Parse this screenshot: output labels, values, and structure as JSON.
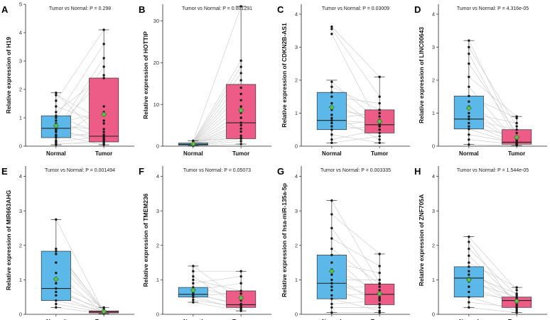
{
  "figure": {
    "description_free": true
  },
  "colors": {
    "normal_box": "#5bb8e8",
    "tumor_box": "#ec5c86",
    "mean": "#5fbf4f",
    "pair_line": "#c8c8c8",
    "point": "#1a1a1a"
  },
  "chart_data": [
    {
      "panel": "A",
      "type": "boxplot-paired",
      "title": "Tumor vs Normal: P = 0.298",
      "ylabel": "Relative expression of H19",
      "categories": [
        "Normal",
        "Tumor"
      ],
      "ylim": [
        0,
        5
      ],
      "yticks": [
        0,
        1,
        2,
        3,
        4,
        5
      ],
      "normal": {
        "min": 0.05,
        "q1": 0.3,
        "median": 0.63,
        "q3": 1.07,
        "max": 1.88,
        "mean": 0.72
      },
      "tumor": {
        "min": 0.05,
        "q1": 0.15,
        "median": 0.35,
        "q3": 2.4,
        "max": 4.1,
        "mean": 1.12
      },
      "pairs": [
        [
          0.05,
          0.2
        ],
        [
          0.1,
          0.1
        ],
        [
          0.15,
          0.35
        ],
        [
          0.2,
          1.4
        ],
        [
          0.3,
          0.5
        ],
        [
          0.35,
          2.8
        ],
        [
          0.4,
          0.05
        ],
        [
          0.5,
          0.3
        ],
        [
          0.55,
          3.1
        ],
        [
          0.6,
          0.15
        ],
        [
          0.63,
          2.4
        ],
        [
          0.7,
          0.6
        ],
        [
          0.8,
          1.2
        ],
        [
          0.9,
          0.25
        ],
        [
          1.0,
          3.6
        ],
        [
          1.07,
          0.4
        ],
        [
          1.2,
          2.5
        ],
        [
          1.4,
          0.8
        ],
        [
          1.6,
          4.1
        ],
        [
          1.8,
          0.9
        ],
        [
          1.88,
          0.2
        ]
      ]
    },
    {
      "panel": "B",
      "type": "boxplot-paired",
      "title": "Tumor vs Normal: P = 0.001291",
      "ylabel": "Relative expression of HOTTIP",
      "categories": [
        "Normal",
        "Tumor"
      ],
      "ylim": [
        0,
        34
      ],
      "yticks": [
        0,
        10,
        20,
        30
      ],
      "normal": {
        "min": 0.1,
        "q1": 0.25,
        "median": 0.45,
        "q3": 0.75,
        "max": 1.3,
        "mean": 0.55
      },
      "tumor": {
        "min": 0.5,
        "q1": 1.8,
        "median": 5.6,
        "q3": 14.8,
        "max": 33.5,
        "mean": 8.6
      },
      "pairs": [
        [
          0.1,
          0.5
        ],
        [
          0.15,
          1.2
        ],
        [
          0.2,
          1.8
        ],
        [
          0.25,
          2.5
        ],
        [
          0.3,
          3.5
        ],
        [
          0.35,
          4.2
        ],
        [
          0.4,
          5.0
        ],
        [
          0.45,
          5.6
        ],
        [
          0.5,
          6.8
        ],
        [
          0.55,
          8.0
        ],
        [
          0.6,
          9.5
        ],
        [
          0.65,
          11.0
        ],
        [
          0.7,
          12.5
        ],
        [
          0.75,
          14.0
        ],
        [
          0.8,
          15.8
        ],
        [
          0.9,
          17.5
        ],
        [
          1.0,
          19.0
        ],
        [
          1.1,
          20.5
        ],
        [
          1.2,
          33.5
        ],
        [
          1.3,
          2.0
        ]
      ]
    },
    {
      "panel": "C",
      "type": "boxplot-paired",
      "title": "Tumor vs Normal: P = 0.03009",
      "ylabel": "Relative expression of CDKN2B-AS1",
      "categories": [
        "Normal",
        "Tumor"
      ],
      "ylim": [
        0,
        4.3
      ],
      "yticks": [
        0,
        1,
        2,
        3,
        4
      ],
      "normal": {
        "min": 0.1,
        "q1": 0.5,
        "median": 0.78,
        "q3": 1.63,
        "max": 2.0,
        "mean": 1.18
      },
      "tumor": {
        "min": 0.1,
        "q1": 0.4,
        "median": 0.65,
        "q3": 1.1,
        "max": 2.1,
        "mean": 0.75
      },
      "pairs": [
        [
          0.1,
          0.3
        ],
        [
          0.2,
          0.5
        ],
        [
          0.35,
          0.1
        ],
        [
          0.5,
          0.6
        ],
        [
          0.6,
          0.8
        ],
        [
          0.7,
          0.4
        ],
        [
          0.78,
          0.7
        ],
        [
          0.85,
          1.0
        ],
        [
          0.95,
          0.2
        ],
        [
          1.1,
          0.9
        ],
        [
          1.3,
          0.65
        ],
        [
          1.5,
          1.3
        ],
        [
          1.63,
          0.5
        ],
        [
          1.8,
          1.1
        ],
        [
          1.95,
          0.75
        ],
        [
          3.4,
          0.6
        ],
        [
          3.55,
          1.5
        ],
        [
          3.62,
          2.1
        ]
      ]
    },
    {
      "panel": "D",
      "type": "boxplot-paired",
      "title": "Tumor vs Normal: P = 4.316e-05",
      "ylabel": "Relative expression of LINC00643",
      "categories": [
        "Normal",
        "Tumor"
      ],
      "ylim": [
        0,
        4.3
      ],
      "yticks": [
        0,
        1,
        2,
        3,
        4
      ],
      "normal": {
        "min": 0.05,
        "q1": 0.52,
        "median": 0.82,
        "q3": 1.52,
        "max": 3.2,
        "mean": 1.15
      },
      "tumor": {
        "min": 0.02,
        "q1": 0.06,
        "median": 0.12,
        "q3": 0.5,
        "max": 0.9,
        "mean": 0.27
      },
      "pairs": [
        [
          0.05,
          0.02
        ],
        [
          0.2,
          0.05
        ],
        [
          0.35,
          0.1
        ],
        [
          0.52,
          0.06
        ],
        [
          0.6,
          0.3
        ],
        [
          0.7,
          0.08
        ],
        [
          0.82,
          0.5
        ],
        [
          0.9,
          0.12
        ],
        [
          1.0,
          0.7
        ],
        [
          1.2,
          0.04
        ],
        [
          1.35,
          0.2
        ],
        [
          1.52,
          0.85
        ],
        [
          1.8,
          0.1
        ],
        [
          2.1,
          0.9
        ],
        [
          2.5,
          0.4
        ],
        [
          2.8,
          0.15
        ],
        [
          3.0,
          0.6
        ],
        [
          3.2,
          0.25
        ]
      ]
    },
    {
      "panel": "E",
      "type": "boxplot-paired",
      "title": "Tumor vs Normal: P = 0.001494",
      "ylabel": "Relative expression of MIR663AHG",
      "categories": [
        "Normal",
        "Tumor"
      ],
      "ylim": [
        0,
        4.3
      ],
      "yticks": [
        0,
        1,
        2,
        3,
        4
      ],
      "normal": {
        "min": 0.2,
        "q1": 0.4,
        "median": 0.75,
        "q3": 1.83,
        "max": 2.75,
        "mean": 1.02
      },
      "tumor": {
        "min": 0.02,
        "q1": 0.04,
        "median": 0.07,
        "q3": 0.1,
        "max": 0.2,
        "mean": 0.08
      },
      "pairs": [
        [
          0.2,
          0.02
        ],
        [
          0.3,
          0.05
        ],
        [
          0.4,
          0.1
        ],
        [
          0.55,
          0.04
        ],
        [
          0.65,
          0.15
        ],
        [
          0.75,
          0.07
        ],
        [
          0.9,
          0.2
        ],
        [
          1.2,
          0.03
        ],
        [
          1.5,
          0.1
        ],
        [
          1.75,
          0.06
        ],
        [
          1.83,
          0.12
        ],
        [
          1.9,
          0.08
        ],
        [
          2.75,
          0.05
        ]
      ]
    },
    {
      "panel": "F",
      "type": "boxplot-paired",
      "title": "Tumor vs Normal: P = 0.05073",
      "ylabel": "Relative expression of TMEM236",
      "categories": [
        "Normal",
        "Tumor"
      ],
      "ylim": [
        0,
        4.3
      ],
      "yticks": [
        0,
        1,
        2,
        3,
        4
      ],
      "normal": {
        "min": 0.35,
        "q1": 0.5,
        "median": 0.58,
        "q3": 0.78,
        "max": 1.4,
        "mean": 0.7
      },
      "tumor": {
        "min": 0.1,
        "q1": 0.2,
        "median": 0.28,
        "q3": 0.68,
        "max": 1.25,
        "mean": 0.48
      },
      "pairs": [
        [
          0.35,
          0.1
        ],
        [
          0.42,
          0.2
        ],
        [
          0.5,
          0.15
        ],
        [
          0.55,
          0.6
        ],
        [
          0.58,
          0.3
        ],
        [
          0.62,
          0.25
        ],
        [
          0.7,
          0.9
        ],
        [
          0.78,
          0.5
        ],
        [
          0.9,
          1.1
        ],
        [
          1.0,
          0.68
        ],
        [
          1.1,
          0.2
        ],
        [
          1.25,
          1.25
        ],
        [
          1.4,
          0.4
        ]
      ]
    },
    {
      "panel": "G",
      "type": "boxplot-paired",
      "title": "Tumor vs Normal: P = 0.003335",
      "ylabel": "Relative expression of hsa-miR-135a-5p",
      "categories": [
        "Normal",
        "Tumor"
      ],
      "ylim": [
        0,
        4.3
      ],
      "yticks": [
        0,
        1,
        2,
        3,
        4
      ],
      "normal": {
        "min": 0.05,
        "q1": 0.45,
        "median": 0.9,
        "q3": 1.72,
        "max": 3.3,
        "mean": 1.25
      },
      "tumor": {
        "min": 0.05,
        "q1": 0.28,
        "median": 0.58,
        "q3": 0.88,
        "max": 1.75,
        "mean": 0.6
      },
      "pairs": [
        [
          0.05,
          0.05
        ],
        [
          0.2,
          0.2
        ],
        [
          0.3,
          0.4
        ],
        [
          0.45,
          0.1
        ],
        [
          0.55,
          0.6
        ],
        [
          0.7,
          0.3
        ],
        [
          0.8,
          0.8
        ],
        [
          0.9,
          0.5
        ],
        [
          1.0,
          1.0
        ],
        [
          1.15,
          0.28
        ],
        [
          1.3,
          0.7
        ],
        [
          1.5,
          1.2
        ],
        [
          1.72,
          0.45
        ],
        [
          1.9,
          0.88
        ],
        [
          2.2,
          1.4
        ],
        [
          2.5,
          0.6
        ],
        [
          2.9,
          1.75
        ],
        [
          3.3,
          0.9
        ]
      ]
    },
    {
      "panel": "H",
      "type": "boxplot-paired",
      "title": "Tumor vs Normal: P = 1.544e-05",
      "ylabel": "Relative expression of ZNF705A",
      "categories": [
        "Normal",
        "Tumor"
      ],
      "ylim": [
        0,
        4.3
      ],
      "yticks": [
        0,
        1,
        2,
        3,
        4
      ],
      "normal": {
        "min": 0.2,
        "q1": 0.5,
        "median": 1.05,
        "q3": 1.38,
        "max": 2.25,
        "mean": 1.0
      },
      "tumor": {
        "min": 0.05,
        "q1": 0.2,
        "median": 0.4,
        "q3": 0.5,
        "max": 0.78,
        "mean": 0.38
      },
      "pairs": [
        [
          0.2,
          0.05
        ],
        [
          0.35,
          0.2
        ],
        [
          0.5,
          0.1
        ],
        [
          0.65,
          0.4
        ],
        [
          0.8,
          0.3
        ],
        [
          0.95,
          0.5
        ],
        [
          1.05,
          0.25
        ],
        [
          1.15,
          0.6
        ],
        [
          1.25,
          0.45
        ],
        [
          1.38,
          0.15
        ],
        [
          1.5,
          0.78
        ],
        [
          1.7,
          0.35
        ],
        [
          1.9,
          0.55
        ],
        [
          2.1,
          0.2
        ],
        [
          2.25,
          0.7
        ]
      ]
    }
  ]
}
